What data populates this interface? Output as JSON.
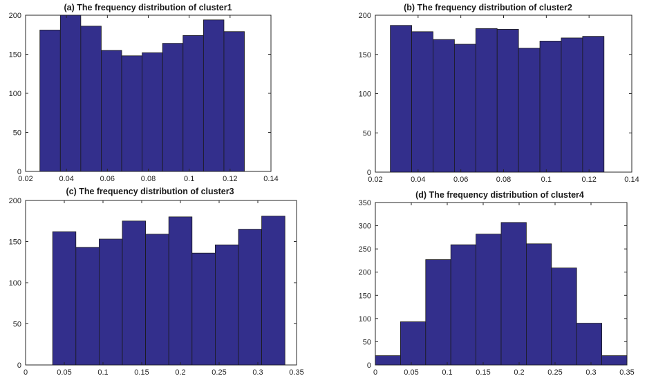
{
  "colors": {
    "bar_fill": "#332f8c",
    "bar_edge": "#1a1a1a",
    "axes": "#262626"
  },
  "chart_data": [
    {
      "type": "bar",
      "title": "(a) The frequency distribution of cluster1",
      "bin_edges": [
        0.027,
        0.037,
        0.047,
        0.057,
        0.067,
        0.077,
        0.087,
        0.097,
        0.107,
        0.117,
        0.127
      ],
      "values": [
        181,
        200,
        186,
        155,
        148,
        152,
        164,
        174,
        194,
        179
      ],
      "xlim": [
        0.02,
        0.14
      ],
      "ylim": [
        0,
        200
      ],
      "xticks": [
        0.02,
        0.04,
        0.06,
        0.08,
        0.1,
        0.12,
        0.14
      ],
      "xtick_labels": [
        "0.02",
        "0.04",
        "0.06",
        "0.08",
        "0.1",
        "0.12",
        "0.14"
      ],
      "yticks": [
        0,
        50,
        100,
        150,
        200
      ],
      "ytick_labels": [
        "0",
        "50",
        "100",
        "150",
        "200"
      ]
    },
    {
      "type": "bar",
      "title": "(b) The frequency distribution of cluster2",
      "bin_edges": [
        0.027,
        0.037,
        0.047,
        0.057,
        0.067,
        0.077,
        0.087,
        0.097,
        0.107,
        0.117,
        0.127
      ],
      "values": [
        187,
        179,
        169,
        163,
        183,
        182,
        158,
        167,
        171,
        173
      ],
      "xlim": [
        0.02,
        0.14
      ],
      "ylim": [
        0,
        200
      ],
      "xticks": [
        0.02,
        0.04,
        0.06,
        0.08,
        0.1,
        0.12,
        0.14
      ],
      "xtick_labels": [
        "0.02",
        "0.04",
        "0.06",
        "0.08",
        "0.1",
        "0.12",
        "0.14"
      ],
      "yticks": [
        0,
        50,
        100,
        150,
        200
      ],
      "ytick_labels": [
        "0",
        "50",
        "100",
        "150",
        "200"
      ]
    },
    {
      "type": "bar",
      "title": "(c) The frequency distribution of cluster3",
      "bin_edges": [
        0.035,
        0.065,
        0.095,
        0.125,
        0.155,
        0.185,
        0.215,
        0.245,
        0.275,
        0.305,
        0.335
      ],
      "values": [
        162,
        143,
        153,
        175,
        159,
        180,
        136,
        146,
        165,
        181
      ],
      "xlim": [
        0,
        0.35
      ],
      "ylim": [
        0,
        200
      ],
      "xticks": [
        0,
        0.05,
        0.1,
        0.15,
        0.2,
        0.25,
        0.3,
        0.35
      ],
      "xtick_labels": [
        "0",
        "0.05",
        "0.1",
        "0.15",
        "0.2",
        "0.25",
        "0.3",
        "0.35"
      ],
      "yticks": [
        0,
        50,
        100,
        150,
        200
      ],
      "ytick_labels": [
        "0",
        "50",
        "100",
        "150",
        "200"
      ]
    },
    {
      "type": "bar",
      "title": "(d) The frequency distribution of cluster4",
      "bin_edges": [
        0,
        0.035,
        0.07,
        0.105,
        0.14,
        0.175,
        0.21,
        0.245,
        0.28,
        0.315,
        0.35
      ],
      "values": [
        20,
        93,
        227,
        259,
        282,
        307,
        261,
        209,
        90,
        20
      ],
      "xlim": [
        0,
        0.35
      ],
      "ylim": [
        0,
        350
      ],
      "xticks": [
        0,
        0.05,
        0.1,
        0.15,
        0.2,
        0.25,
        0.3,
        0.35
      ],
      "xtick_labels": [
        "0",
        "0.05",
        "0.1",
        "0.15",
        "0.2",
        "0.25",
        "0.3",
        "0.35"
      ],
      "yticks": [
        0,
        50,
        100,
        150,
        200,
        250,
        300,
        350
      ],
      "ytick_labels": [
        "0",
        "50",
        "100",
        "150",
        "200",
        "250",
        "300",
        "350"
      ]
    }
  ]
}
